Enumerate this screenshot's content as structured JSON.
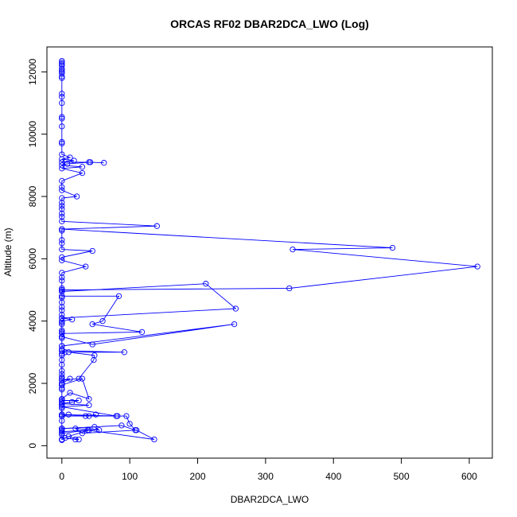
{
  "chart_data": {
    "type": "line",
    "title": "ORCAS RF02 DBAR2DCA_LWO (Log)",
    "xlabel": "DBAR2DCA_LWO",
    "ylabel": "Altitude (m)",
    "xlim": [
      -22,
      634
    ],
    "ylim": [
      -400,
      12800
    ],
    "xticks": [
      0,
      100,
      200,
      300,
      400,
      500,
      600
    ],
    "yticks": [
      0,
      2000,
      4000,
      6000,
      8000,
      10000,
      12000
    ],
    "grid": false,
    "legend": "none",
    "colors": {
      "series": "#0000ff",
      "axes": "#000000"
    },
    "marker": "open-circle",
    "series": [
      {
        "points": [
          [
            0,
            12350
          ],
          [
            0,
            12300
          ],
          [
            0,
            12250
          ],
          [
            0,
            12200
          ],
          [
            0,
            12100
          ],
          [
            0,
            12050
          ],
          [
            0,
            12000
          ],
          [
            0,
            11950
          ],
          [
            0,
            11850
          ],
          [
            0,
            11800
          ],
          [
            0,
            11300
          ],
          [
            0,
            11200
          ],
          [
            0,
            11000
          ],
          [
            0,
            10550
          ],
          [
            0,
            10500
          ],
          [
            0,
            10250
          ],
          [
            0,
            9750
          ],
          [
            0,
            9700
          ],
          [
            0,
            9350
          ],
          [
            12,
            9250
          ],
          [
            0,
            9200
          ],
          [
            18,
            9150
          ],
          [
            0,
            9100
          ],
          [
            40,
            9100
          ],
          [
            62,
            9080
          ],
          [
            42,
            9100
          ],
          [
            8,
            9050
          ],
          [
            0,
            9000
          ],
          [
            30,
            8950
          ],
          [
            0,
            8900
          ],
          [
            30,
            8750
          ],
          [
            0,
            8500
          ],
          [
            0,
            8300
          ],
          [
            0,
            8200
          ],
          [
            22,
            8000
          ],
          [
            0,
            7950
          ],
          [
            0,
            7800
          ],
          [
            0,
            7700
          ],
          [
            0,
            7600
          ],
          [
            0,
            7450
          ],
          [
            0,
            7350
          ],
          [
            0,
            7200
          ],
          [
            140,
            7050
          ],
          [
            0,
            6950
          ],
          [
            0,
            6900
          ],
          [
            0,
            6600
          ],
          [
            0,
            6500
          ],
          [
            0,
            6300
          ],
          [
            45,
            6250
          ],
          [
            0,
            6050
          ],
          [
            0,
            5950
          ],
          [
            35,
            5750
          ],
          [
            0,
            5550
          ],
          [
            0,
            5400
          ],
          [
            0,
            5300
          ],
          [
            0,
            5050
          ],
          [
            0,
            5000
          ],
          [
            0,
            4950
          ],
          [
            0,
            4800
          ],
          [
            0,
            4750
          ],
          [
            0,
            4600
          ],
          [
            0,
            4450
          ],
          [
            0,
            4350
          ],
          [
            0,
            4200
          ],
          [
            0,
            4100
          ],
          [
            15,
            4050
          ],
          [
            0,
            4000
          ],
          [
            0,
            3950
          ],
          [
            0,
            3900
          ],
          [
            0,
            3700
          ],
          [
            0,
            3650
          ],
          [
            0,
            3500
          ],
          [
            0,
            3450
          ],
          [
            0,
            3200
          ],
          [
            0,
            3100
          ],
          [
            0,
            3050
          ],
          [
            5,
            3000
          ],
          [
            0,
            2950
          ],
          [
            0,
            2900
          ],
          [
            0,
            2750
          ],
          [
            0,
            2600
          ],
          [
            0,
            2400
          ],
          [
            0,
            2300
          ],
          [
            0,
            2200
          ],
          [
            0,
            2150
          ],
          [
            0,
            2000
          ],
          [
            0,
            1950
          ],
          [
            0,
            1850
          ],
          [
            0,
            1800
          ],
          [
            0,
            1500
          ],
          [
            0,
            1400
          ],
          [
            0,
            1300
          ],
          [
            0,
            1200
          ],
          [
            0,
            1000
          ],
          [
            0,
            950
          ],
          [
            0,
            800
          ],
          [
            0,
            550
          ],
          [
            0,
            500
          ],
          [
            0,
            350
          ],
          [
            0,
            200
          ],
          [
            0,
            180
          ]
        ]
      },
      {
        "points": [
          [
            0,
            6950
          ],
          [
            487,
            6350
          ],
          [
            340,
            6300
          ],
          [
            612,
            5750
          ],
          [
            335,
            5050
          ],
          [
            0,
            5000
          ]
        ]
      },
      {
        "points": [
          [
            0,
            4950
          ],
          [
            212,
            5200
          ],
          [
            256,
            4400
          ],
          [
            0,
            4100
          ]
        ]
      },
      {
        "points": [
          [
            0,
            4800
          ],
          [
            84,
            4800
          ],
          [
            60,
            4000
          ],
          [
            45,
            3900
          ],
          [
            118,
            3650
          ],
          [
            0,
            3600
          ]
        ]
      },
      {
        "points": [
          [
            0,
            3500
          ],
          [
            45,
            3250
          ],
          [
            254,
            3900
          ],
          [
            0,
            3200
          ]
        ]
      },
      {
        "points": [
          [
            0,
            3050
          ],
          [
            92,
            3000
          ],
          [
            10,
            3000
          ],
          [
            48,
            2900
          ],
          [
            47,
            2750
          ],
          [
            25,
            2150
          ],
          [
            0,
            2100
          ],
          [
            12,
            2150
          ],
          [
            0,
            2000
          ]
        ]
      },
      {
        "points": [
          [
            0,
            1950
          ],
          [
            30,
            2150
          ],
          [
            40,
            1500
          ],
          [
            12,
            1700
          ],
          [
            0,
            1500
          ]
        ]
      },
      {
        "points": [
          [
            0,
            1450
          ],
          [
            25,
            1450
          ],
          [
            15,
            1400
          ],
          [
            0,
            1350
          ],
          [
            40,
            1300
          ],
          [
            0,
            1250
          ],
          [
            80,
            950
          ],
          [
            82,
            950
          ],
          [
            0,
            1000
          ],
          [
            40,
            950
          ],
          [
            50,
            1000
          ],
          [
            35,
            950
          ],
          [
            10,
            1000
          ],
          [
            0,
            950
          ]
        ]
      },
      {
        "points": [
          [
            0,
            950
          ],
          [
            95,
            950
          ],
          [
            100,
            700
          ],
          [
            108,
            500
          ],
          [
            88,
            650
          ],
          [
            0,
            550
          ]
        ]
      },
      {
        "points": [
          [
            0,
            550
          ],
          [
            48,
            600
          ],
          [
            55,
            500
          ],
          [
            20,
            550
          ],
          [
            30,
            400
          ],
          [
            110,
            500
          ],
          [
            136,
            200
          ],
          [
            38,
            500
          ],
          [
            0,
            450
          ]
        ]
      },
      {
        "points": [
          [
            0,
            400
          ],
          [
            40,
            500
          ],
          [
            10,
            300
          ],
          [
            25,
            200
          ],
          [
            20,
            200
          ],
          [
            5,
            250
          ],
          [
            0,
            200
          ]
        ]
      }
    ]
  }
}
